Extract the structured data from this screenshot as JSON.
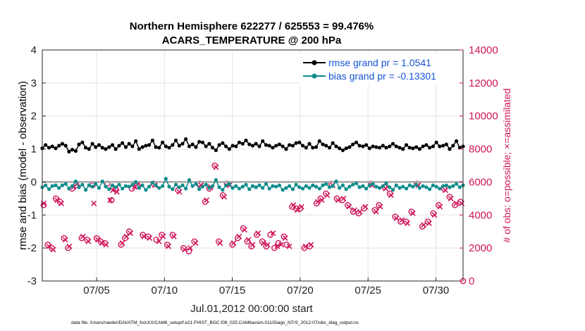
{
  "chart_data": {
    "type": "line",
    "title_line1": "Northern Hemisphere 622277 / 625553 = 99.476%",
    "title_line2": "ACARS_TEMPERATURE @ 200 hPa",
    "ylabel": "rmse and bias (model - observation)",
    "ylabel_right": "# of obs: o=possible; ×=assimilated",
    "xlabel": "Jul.01,2012 00:00:00 start",
    "footer": "data file: /Users/raeder/DAI/ATM_forcXX/CAM6_setup/f.e21.FHIST_BGC.f09_025.CAM6assim.011/Diags_NTrS_2012-07/obs_diag_output.nc",
    "xlim": [
      1,
      32
    ],
    "ylim": [
      -3,
      4
    ],
    "ylim_right": [
      0,
      14000
    ],
    "x_ticks": [
      5,
      10,
      15,
      20,
      25,
      30
    ],
    "x_tick_labels": [
      "07/05",
      "07/10",
      "07/15",
      "07/20",
      "07/25",
      "07/30"
    ],
    "y_ticks": [
      -3,
      -2,
      -1,
      0,
      1,
      2,
      3,
      4
    ],
    "y_tick_labels": [
      "-3",
      "-2",
      "-1",
      "0",
      "1",
      "2",
      "3",
      "4"
    ],
    "y2_ticks": [
      0,
      2000,
      4000,
      6000,
      8000,
      10000,
      12000,
      14000
    ],
    "y2_tick_labels": [
      "0",
      "2000",
      "4000",
      "6000",
      "8000",
      "10000",
      "12000",
      "14000"
    ],
    "grid": true,
    "legend_position": "top-right",
    "series": [
      {
        "name": "rmse grand pr = 1.0541",
        "color": "#000000",
        "marker": "circle",
        "values": [
          1.02,
          1.12,
          1.04,
          1.08,
          1.02,
          1.1,
          1.16,
          1.1,
          0.92,
          0.98,
          0.94,
          1.14,
          1.2,
          1.04,
          1.0,
          1.16,
          1.06,
          1.12,
          1.04,
          1.0,
          1.06,
          1.12,
          1.0,
          1.1,
          1.18,
          1.06,
          1.16,
          1.08,
          1.24,
          1.0,
          1.06,
          1.1,
          1.12,
          1.26,
          1.06,
          1.04,
          1.2,
          1.08,
          1.04,
          1.12,
          1.26,
          1.1,
          1.16,
          1.3,
          1.08,
          1.14,
          1.06,
          1.22,
          1.2,
          1.08,
          1.16,
          1.04,
          0.96,
          1.12,
          1.18,
          1.08,
          1.0,
          1.1,
          1.08,
          1.2,
          1.16,
          1.26,
          1.14,
          1.1,
          1.16,
          1.08,
          1.24,
          1.12,
          1.1,
          1.04,
          1.1,
          1.14,
          1.08,
          1.0,
          1.12,
          1.1,
          1.18,
          1.2,
          1.1,
          1.04,
          1.16,
          1.04,
          1.06,
          1.24,
          1.14,
          1.1,
          1.04,
          1.18,
          1.08,
          1.02,
          0.96,
          1.02,
          1.06,
          1.14,
          1.2,
          1.1,
          1.08,
          1.12,
          1.02,
          1.08,
          1.06,
          1.04,
          1.1,
          1.04,
          1.08,
          1.16,
          1.08,
          1.04,
          1.0,
          1.12,
          1.04,
          1.02,
          1.06,
          1.0,
          1.08,
          1.12,
          1.04,
          1.08,
          1.2,
          1.08,
          1.1,
          1.14,
          1.0,
          1.1,
          1.24,
          1.04,
          1.08
        ]
      },
      {
        "name": "bias grand pr = -0.13301",
        "color": "#0e8c8c",
        "marker": "circle",
        "values": [
          -0.16,
          -0.1,
          -0.22,
          -0.12,
          -0.1,
          -0.18,
          -0.1,
          -0.06,
          -0.2,
          -0.12,
          0.02,
          -0.16,
          -0.08,
          -0.24,
          -0.1,
          -0.14,
          -0.06,
          -0.18,
          0.02,
          -0.14,
          -0.22,
          -0.1,
          -0.16,
          -0.08,
          -0.2,
          -0.12,
          -0.14,
          -0.08,
          0.0,
          -0.18,
          -0.1,
          -0.24,
          -0.14,
          -0.02,
          -0.1,
          -0.18,
          -0.12,
          0.1,
          -0.14,
          -0.22,
          -0.08,
          -0.16,
          -0.1,
          -0.2,
          0.06,
          -0.12,
          -0.06,
          -0.22,
          -0.14,
          -0.08,
          -0.18,
          -0.12,
          0.06,
          -0.16,
          -0.24,
          -0.1,
          -0.06,
          -0.18,
          -0.12,
          -0.2,
          -0.14,
          -0.08,
          -0.22,
          -0.12,
          -0.16,
          -0.1,
          -0.18,
          -0.06,
          -0.2,
          -0.12,
          -0.14,
          -0.1,
          -0.24,
          -0.18,
          -0.12,
          -0.22,
          -0.08,
          -0.16,
          -0.2,
          -0.12,
          -0.18,
          -0.1,
          -0.14,
          -0.2,
          -0.1,
          -0.06,
          -0.16,
          -0.12,
          0.02,
          -0.18,
          -0.1,
          -0.22,
          -0.14,
          -0.08,
          -0.04,
          -0.16,
          -0.12,
          -0.2,
          -0.1,
          -0.06,
          -0.14,
          -0.18,
          -0.12,
          -0.04,
          -0.16,
          -0.24,
          -0.1,
          -0.18,
          -0.14,
          -0.2,
          -0.1,
          -0.14,
          -0.08,
          -0.18,
          -0.12,
          -0.16,
          -0.22,
          -0.1,
          -0.14,
          -0.2,
          -0.12,
          -0.1,
          -0.16,
          -0.12,
          -0.06,
          -0.16,
          -0.1
        ]
      }
    ],
    "obs_possible": {
      "name": "possible",
      "color": "#d0145a",
      "points": [
        [
          1.1,
          4600
        ],
        [
          1.4,
          2200
        ],
        [
          1.7,
          2000
        ],
        [
          2.0,
          5000
        ],
        [
          2.3,
          4800
        ],
        [
          2.6,
          2600
        ],
        [
          2.9,
          2000
        ],
        [
          3.2,
          5600
        ],
        [
          3.5,
          5800
        ],
        [
          3.9,
          2600
        ],
        [
          4.3,
          2500
        ],
        [
          4.7,
          5800
        ],
        [
          5.0,
          2600
        ],
        [
          5.3,
          2400
        ],
        [
          5.6,
          2300
        ],
        [
          5.8,
          5900
        ],
        [
          6.1,
          4900
        ],
        [
          6.4,
          5600
        ],
        [
          6.8,
          2200
        ],
        [
          7.1,
          2600
        ],
        [
          7.4,
          3000
        ],
        [
          7.6,
          5600
        ],
        [
          8.0,
          5800
        ],
        [
          8.4,
          2800
        ],
        [
          8.8,
          2700
        ],
        [
          9.2,
          5900
        ],
        [
          9.4,
          2500
        ],
        [
          9.8,
          2800
        ],
        [
          10.2,
          2200
        ],
        [
          10.6,
          2800
        ],
        [
          11.0,
          5500
        ],
        [
          11.4,
          2000
        ],
        [
          11.8,
          1800
        ],
        [
          12.2,
          2400
        ],
        [
          12.6,
          5900
        ],
        [
          13.0,
          4800
        ],
        [
          13.3,
          5600
        ],
        [
          13.7,
          7000
        ],
        [
          14.0,
          2400
        ],
        [
          14.3,
          5200
        ],
        [
          14.6,
          5900
        ],
        [
          15.0,
          2200
        ],
        [
          15.4,
          2600
        ],
        [
          15.8,
          3200
        ],
        [
          16.1,
          2400
        ],
        [
          16.4,
          2100
        ],
        [
          16.8,
          2800
        ],
        [
          17.2,
          2400
        ],
        [
          17.5,
          2100
        ],
        [
          17.8,
          2800
        ],
        [
          18.1,
          2000
        ],
        [
          18.4,
          2300
        ],
        [
          18.8,
          2700
        ],
        [
          19.0,
          2200
        ],
        [
          19.4,
          4500
        ],
        [
          19.7,
          4400
        ],
        [
          20.0,
          4400
        ],
        [
          20.3,
          2000
        ],
        [
          20.7,
          2100
        ],
        [
          21.2,
          4700
        ],
        [
          21.5,
          5000
        ],
        [
          21.9,
          5300
        ],
        [
          22.3,
          5900
        ],
        [
          22.7,
          5000
        ],
        [
          23.1,
          4900
        ],
        [
          23.5,
          4600
        ],
        [
          23.9,
          4200
        ],
        [
          24.3,
          4100
        ],
        [
          24.7,
          4400
        ],
        [
          25.2,
          5900
        ],
        [
          25.5,
          4300
        ],
        [
          25.8,
          4600
        ],
        [
          26.2,
          5700
        ],
        [
          26.6,
          5300
        ],
        [
          27.0,
          3900
        ],
        [
          27.4,
          3600
        ],
        [
          27.8,
          3600
        ],
        [
          28.2,
          4200
        ],
        [
          28.6,
          5900
        ],
        [
          29.0,
          3300
        ],
        [
          29.4,
          3600
        ],
        [
          29.8,
          4100
        ],
        [
          30.2,
          4600
        ],
        [
          30.6,
          5600
        ],
        [
          31.0,
          5100
        ],
        [
          31.4,
          4600
        ],
        [
          31.8,
          4800
        ],
        [
          32.0,
          0
        ]
      ]
    },
    "obs_assimilated": {
      "name": "assimilated",
      "color": "#d0145a",
      "points": [
        [
          1.1,
          4700
        ],
        [
          1.5,
          2100
        ],
        [
          1.8,
          1900
        ],
        [
          2.1,
          4900
        ],
        [
          2.4,
          4700
        ],
        [
          2.7,
          2500
        ],
        [
          3.0,
          2100
        ],
        [
          3.3,
          5700
        ],
        [
          3.6,
          5900
        ],
        [
          4.0,
          2700
        ],
        [
          4.4,
          2400
        ],
        [
          4.8,
          4700
        ],
        [
          5.1,
          2500
        ],
        [
          5.4,
          2300
        ],
        [
          5.7,
          2200
        ],
        [
          6.0,
          4900
        ],
        [
          6.2,
          5500
        ],
        [
          6.5,
          5400
        ],
        [
          6.9,
          2300
        ],
        [
          7.2,
          2700
        ],
        [
          7.5,
          2900
        ],
        [
          7.8,
          5700
        ],
        [
          8.1,
          5900
        ],
        [
          8.5,
          2700
        ],
        [
          8.9,
          2600
        ],
        [
          9.3,
          5800
        ],
        [
          9.6,
          2400
        ],
        [
          9.9,
          2700
        ],
        [
          10.3,
          2100
        ],
        [
          10.7,
          2700
        ],
        [
          11.1,
          5400
        ],
        [
          11.5,
          1900
        ],
        [
          11.9,
          2000
        ],
        [
          12.3,
          2300
        ],
        [
          12.7,
          5800
        ],
        [
          13.1,
          4900
        ],
        [
          13.4,
          5700
        ],
        [
          13.8,
          6900
        ],
        [
          14.1,
          2300
        ],
        [
          14.4,
          5100
        ],
        [
          14.8,
          5800
        ],
        [
          15.1,
          2300
        ],
        [
          15.5,
          2700
        ],
        [
          15.9,
          3100
        ],
        [
          16.2,
          2500
        ],
        [
          16.5,
          2200
        ],
        [
          16.9,
          2900
        ],
        [
          17.3,
          2300
        ],
        [
          17.6,
          2200
        ],
        [
          18.0,
          2900
        ],
        [
          18.3,
          2100
        ],
        [
          18.6,
          2200
        ],
        [
          18.9,
          2600
        ],
        [
          19.2,
          2100
        ],
        [
          19.5,
          4600
        ],
        [
          19.8,
          4300
        ],
        [
          20.1,
          4500
        ],
        [
          20.4,
          2100
        ],
        [
          20.8,
          2200
        ],
        [
          21.3,
          4800
        ],
        [
          21.6,
          4900
        ],
        [
          22.0,
          5200
        ],
        [
          22.4,
          5800
        ],
        [
          22.8,
          4900
        ],
        [
          23.2,
          5000
        ],
        [
          23.6,
          4500
        ],
        [
          24.0,
          4300
        ],
        [
          24.4,
          4200
        ],
        [
          24.8,
          4500
        ],
        [
          25.3,
          5800
        ],
        [
          25.6,
          4200
        ],
        [
          25.9,
          4500
        ],
        [
          26.3,
          5600
        ],
        [
          26.7,
          5200
        ],
        [
          27.1,
          3800
        ],
        [
          27.5,
          3700
        ],
        [
          27.9,
          3500
        ],
        [
          28.3,
          4100
        ],
        [
          28.7,
          5800
        ],
        [
          29.1,
          3400
        ],
        [
          29.5,
          3500
        ],
        [
          29.9,
          4000
        ],
        [
          30.3,
          4500
        ],
        [
          30.7,
          5500
        ],
        [
          31.1,
          5000
        ],
        [
          31.5,
          4700
        ],
        [
          31.9,
          4700
        ]
      ]
    },
    "legend": [
      {
        "label": "rmse grand pr = 1.0541",
        "color": "#000000"
      },
      {
        "label": "bias grand pr = -0.13301",
        "color": "#0e8c8c"
      }
    ]
  }
}
